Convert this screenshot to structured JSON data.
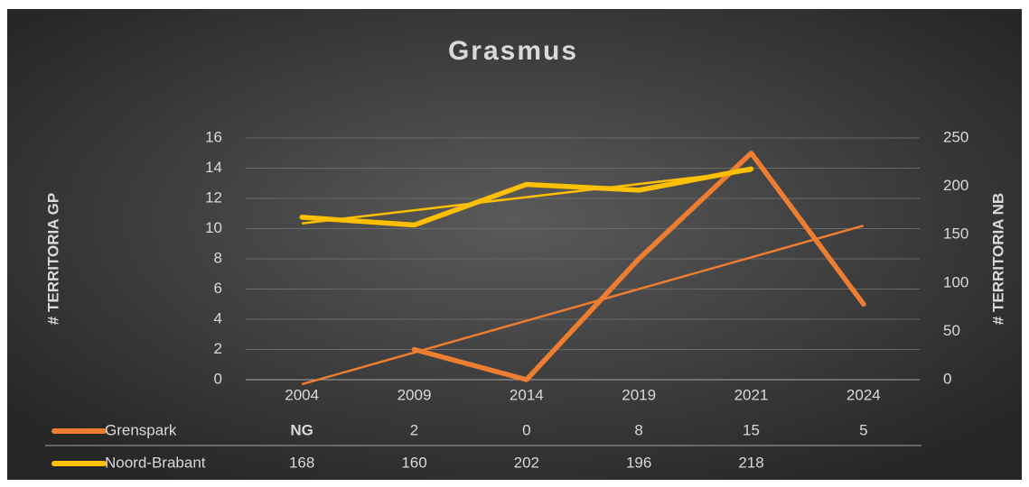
{
  "chart_data": {
    "type": "line",
    "title": "Grasmus",
    "y_label": "# TERRITORIA GP",
    "y2_label": "# TERRITORIA NB",
    "categories": [
      "2004",
      "2009",
      "2014",
      "2019",
      "2021",
      "2024"
    ],
    "series": [
      {
        "name": "Grenspark",
        "color": "#ED7D31",
        "axis": "y",
        "trendline": true,
        "values": [
          null,
          2,
          0,
          8,
          15,
          5
        ],
        "value_labels": [
          "NG",
          "2",
          "0",
          "8",
          "15",
          "5"
        ]
      },
      {
        "name": "Noord-Brabant",
        "color": "#FFC000",
        "axis": "y2",
        "trendline": true,
        "values": [
          168,
          160,
          202,
          196,
          218,
          null
        ]
      }
    ],
    "ylim": [
      0,
      16
    ],
    "yticks": [
      0,
      2,
      4,
      6,
      8,
      10,
      12,
      14,
      16
    ],
    "y2lim": [
      0,
      250
    ],
    "y2ticks": [
      0,
      50,
      100,
      150,
      200,
      250
    ],
    "grid": true,
    "data_table": true
  }
}
